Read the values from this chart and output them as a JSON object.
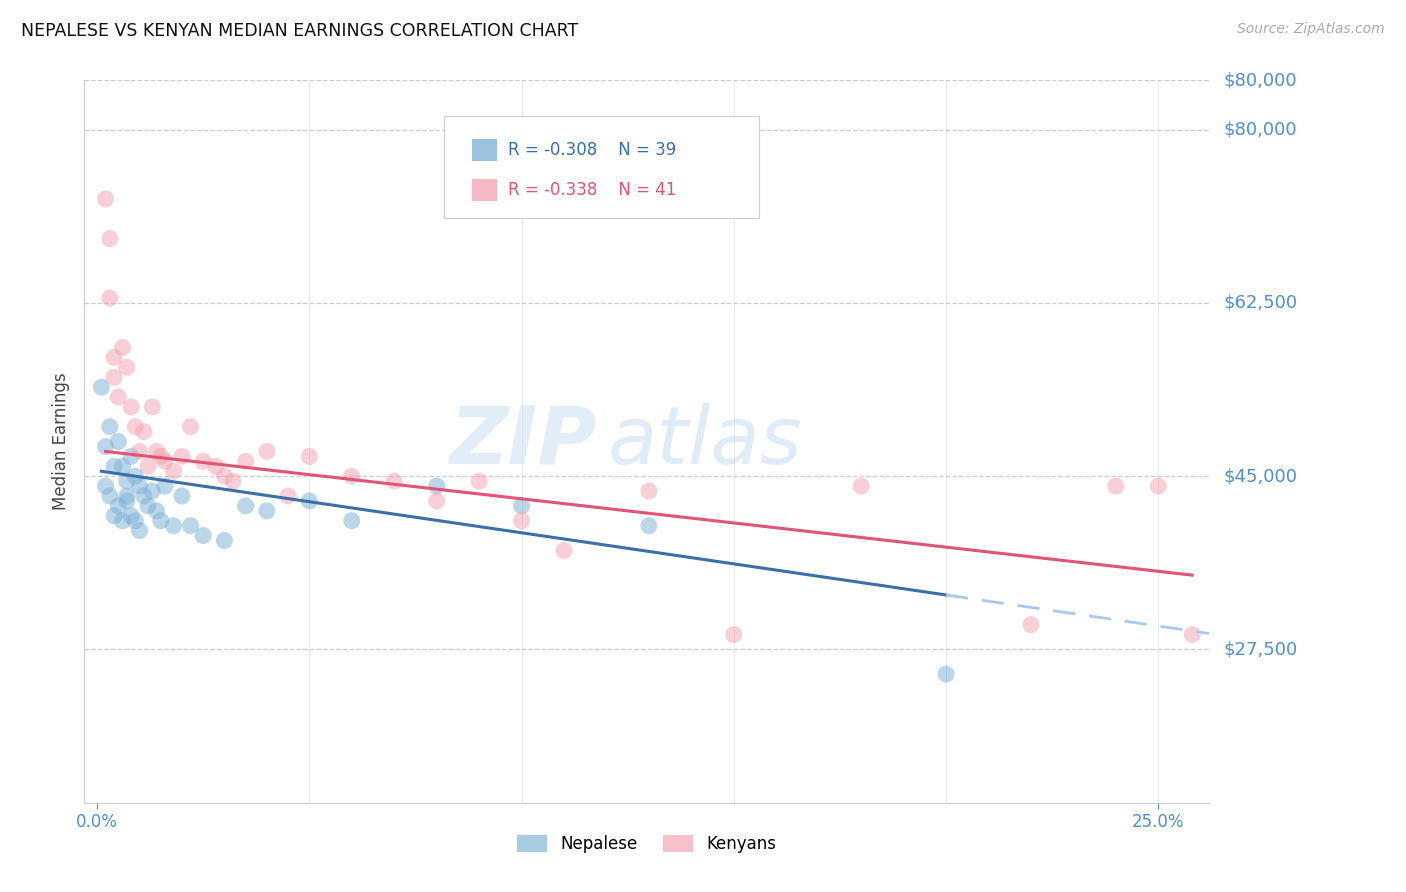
{
  "title": "NEPALESE VS KENYAN MEDIAN EARNINGS CORRELATION CHART",
  "source": "Source: ZipAtlas.com",
  "ylabel": "Median Earnings",
  "ytick_labels": [
    "$27,500",
    "$45,000",
    "$62,500",
    "$80,000"
  ],
  "ytick_values": [
    27500,
    45000,
    62500,
    80000
  ],
  "ymin": 12000,
  "ymax": 85000,
  "xmin": -0.003,
  "xmax": 0.262,
  "watermark_zip": "ZIP",
  "watermark_atlas": "atlas",
  "legend_r_blue": "R = -0.308",
  "legend_n_blue": "N = 39",
  "legend_r_pink": "R = -0.338",
  "legend_n_pink": "N = 41",
  "blue_scatter": "#7bafd4",
  "pink_scatter": "#f4a0b0",
  "trend_blue": "#3a6fa8",
  "trend_blue_dash": "#a8c8f0",
  "trend_pink": "#e05575",
  "bg": "#ffffff",
  "grid_color": "#cccccc",
  "axis_color": "#5090d0",
  "title_color": "#111111",
  "nepalese_x": [
    0.001,
    0.002,
    0.002,
    0.003,
    0.003,
    0.004,
    0.004,
    0.005,
    0.005,
    0.006,
    0.006,
    0.007,
    0.007,
    0.007,
    0.008,
    0.008,
    0.009,
    0.009,
    0.01,
    0.01,
    0.011,
    0.012,
    0.013,
    0.014,
    0.015,
    0.016,
    0.018,
    0.02,
    0.022,
    0.025,
    0.03,
    0.035,
    0.04,
    0.05,
    0.06,
    0.08,
    0.1,
    0.13,
    0.2
  ],
  "nepalese_y": [
    54000,
    48000,
    44000,
    50000,
    43000,
    46000,
    41000,
    48500,
    42000,
    46000,
    40500,
    44500,
    43000,
    42500,
    47000,
    41000,
    45000,
    40500,
    44000,
    39500,
    43000,
    42000,
    43500,
    41500,
    40500,
    44000,
    40000,
    43000,
    40000,
    39000,
    38500,
    42000,
    41500,
    42500,
    40500,
    44000,
    42000,
    40000,
    25000
  ],
  "kenyan_x": [
    0.002,
    0.003,
    0.003,
    0.004,
    0.004,
    0.005,
    0.006,
    0.007,
    0.008,
    0.009,
    0.01,
    0.011,
    0.012,
    0.013,
    0.014,
    0.015,
    0.016,
    0.018,
    0.02,
    0.022,
    0.025,
    0.028,
    0.03,
    0.032,
    0.035,
    0.04,
    0.045,
    0.05,
    0.06,
    0.07,
    0.08,
    0.09,
    0.1,
    0.11,
    0.13,
    0.15,
    0.18,
    0.22,
    0.24,
    0.25,
    0.258
  ],
  "kenyan_y": [
    73000,
    69000,
    63000,
    57000,
    55000,
    53000,
    58000,
    56000,
    52000,
    50000,
    47500,
    49500,
    46000,
    52000,
    47500,
    47000,
    46500,
    45500,
    47000,
    50000,
    46500,
    46000,
    45000,
    44500,
    46500,
    47500,
    43000,
    47000,
    45000,
    44500,
    42500,
    44500,
    40500,
    37500,
    43500,
    29000,
    44000,
    30000,
    44000,
    44000,
    29000
  ]
}
